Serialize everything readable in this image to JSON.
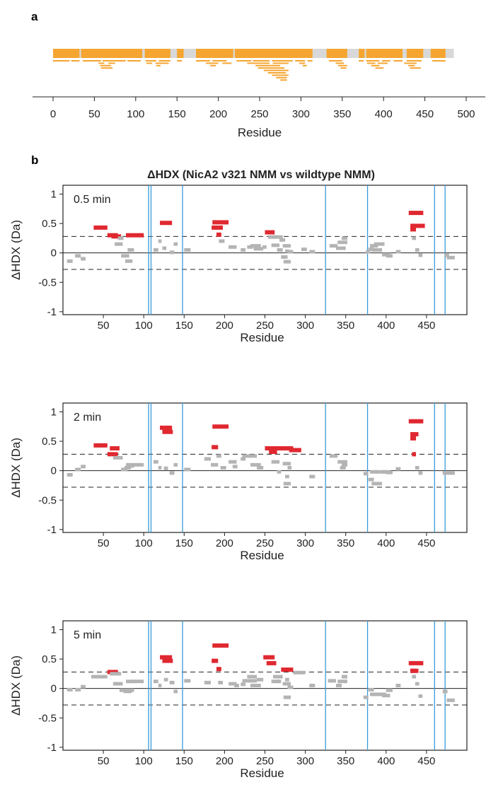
{
  "panel_a_label": "a",
  "panel_b_label": "b",
  "colors": {
    "coverage": "#F5A530",
    "gap": "#D8D8D8",
    "sig": "#E02830",
    "nonsig": "#B4B4B4",
    "marker": "#3A9AD9",
    "axis": "#222222"
  },
  "chart_data": [
    {
      "type": "bar",
      "title": "",
      "xlabel": "Residue",
      "xlim": [
        0,
        500
      ],
      "xticks": [
        0,
        50,
        100,
        150,
        200,
        250,
        300,
        350,
        400,
        450,
        500
      ],
      "sequence_length": 485,
      "covered_segments": [
        [
          0,
          32
        ],
        [
          34,
          108
        ],
        [
          111,
          142
        ],
        [
          150,
          158
        ],
        [
          173,
          218
        ],
        [
          220,
          314
        ],
        [
          331,
          356
        ],
        [
          370,
          377
        ],
        [
          379,
          423
        ],
        [
          428,
          448
        ],
        [
          457,
          475
        ]
      ],
      "peptides": [
        [
          0,
          32
        ],
        [
          34,
          108
        ],
        [
          111,
          142
        ],
        [
          150,
          158
        ],
        [
          173,
          218
        ],
        [
          220,
          314
        ],
        [
          331,
          356
        ],
        [
          370,
          377
        ],
        [
          379,
          423
        ],
        [
          428,
          448
        ],
        [
          457,
          475
        ],
        [
          0,
          20
        ],
        [
          22,
          32
        ],
        [
          36,
          58
        ],
        [
          60,
          88
        ],
        [
          90,
          106
        ],
        [
          112,
          125
        ],
        [
          128,
          142
        ],
        [
          150,
          156
        ],
        [
          173,
          190
        ],
        [
          193,
          210
        ],
        [
          222,
          240
        ],
        [
          242,
          262
        ],
        [
          265,
          290
        ],
        [
          293,
          305
        ],
        [
          308,
          314
        ],
        [
          334,
          350
        ],
        [
          370,
          376
        ],
        [
          379,
          395
        ],
        [
          398,
          408
        ],
        [
          412,
          423
        ],
        [
          428,
          446
        ],
        [
          459,
          475
        ],
        [
          55,
          62
        ],
        [
          67,
          75
        ],
        [
          113,
          120
        ],
        [
          124,
          140
        ],
        [
          185,
          200
        ],
        [
          205,
          216
        ],
        [
          235,
          262
        ],
        [
          266,
          285
        ],
        [
          298,
          305
        ],
        [
          342,
          352
        ],
        [
          380,
          390
        ],
        [
          393,
          405
        ],
        [
          425,
          440
        ],
        [
          57,
          70
        ],
        [
          125,
          130
        ],
        [
          190,
          197
        ],
        [
          245,
          275
        ],
        [
          302,
          307
        ],
        [
          345,
          356
        ],
        [
          385,
          395
        ],
        [
          430,
          438
        ],
        [
          58,
          72
        ],
        [
          248,
          280
        ],
        [
          348,
          355
        ],
        [
          390,
          400
        ],
        [
          432,
          445
        ],
        [
          255,
          285
        ],
        [
          260,
          282
        ],
        [
          265,
          285
        ],
        [
          270,
          283
        ],
        [
          275,
          283
        ]
      ]
    },
    {
      "type": "scatter",
      "title": "ΔHDX (NicA2 v321 NMM vs wildtype NMM)",
      "timepoint": "0.5 min",
      "xlabel": "Residue",
      "ylabel": "ΔHDX (Da)",
      "xlim": [
        0,
        500
      ],
      "ylim": [
        -1.05,
        1.15
      ],
      "xticks": [
        50,
        100,
        150,
        200,
        250,
        300,
        350,
        400,
        450
      ],
      "yticks": [
        1,
        0.5,
        0,
        -0.5,
        -1
      ],
      "yticklabels": [
        "1",
        "0.5",
        "0",
        "-0.5",
        "-1"
      ],
      "threshold": 0.28,
      "marker_positions": [
        106,
        109,
        148,
        325,
        377,
        460,
        473
      ],
      "peptides": [
        [
          5,
          12,
          -0.14
        ],
        [
          15,
          22,
          -0.05
        ],
        [
          22,
          28,
          -0.1
        ],
        [
          38,
          55,
          0.43
        ],
        [
          55,
          68,
          0.3
        ],
        [
          60,
          72,
          0.28
        ],
        [
          64,
          74,
          0.15
        ],
        [
          68,
          75,
          0.25
        ],
        [
          72,
          82,
          -0.05
        ],
        [
          77,
          86,
          -0.14
        ],
        [
          78,
          100,
          0.3
        ],
        [
          80,
          88,
          0.05
        ],
        [
          112,
          118,
          0.05
        ],
        [
          118,
          122,
          0.2
        ],
        [
          120,
          135,
          0.51
        ],
        [
          123,
          128,
          0.08
        ],
        [
          132,
          138,
          0.01
        ],
        [
          137,
          142,
          0.15
        ],
        [
          150,
          158,
          0.05
        ],
        [
          184,
          198,
          0.43
        ],
        [
          185,
          205,
          0.52
        ],
        [
          190,
          196,
          0.31
        ],
        [
          193,
          200,
          0.2
        ],
        [
          205,
          215,
          0.1
        ],
        [
          220,
          226,
          0.05
        ],
        [
          228,
          235,
          0.1
        ],
        [
          232,
          245,
          0.12
        ],
        [
          236,
          248,
          0.07
        ],
        [
          247,
          252,
          0.1
        ],
        [
          250,
          262,
          0.35
        ],
        [
          254,
          264,
          0.27
        ],
        [
          258,
          268,
          0.13
        ],
        [
          260,
          272,
          0.27
        ],
        [
          265,
          272,
          0.05
        ],
        [
          268,
          275,
          0.22
        ],
        [
          270,
          278,
          -0.07
        ],
        [
          272,
          282,
          0.12
        ],
        [
          273,
          282,
          -0.15
        ],
        [
          275,
          280,
          0.03
        ],
        [
          278,
          285,
          0.02
        ],
        [
          295,
          302,
          0.06
        ],
        [
          305,
          312,
          0.02
        ],
        [
          330,
          340,
          0.12
        ],
        [
          338,
          345,
          0.08
        ],
        [
          340,
          352,
          0.18
        ],
        [
          343,
          350,
          0.08
        ],
        [
          345,
          352,
          0.25
        ],
        [
          375,
          380,
          0.02
        ],
        [
          378,
          385,
          0.06
        ],
        [
          380,
          390,
          0.12
        ],
        [
          382,
          395,
          0.05
        ],
        [
          385,
          398,
          0.15
        ],
        [
          395,
          405,
          -0.03
        ],
        [
          400,
          408,
          -0.05
        ],
        [
          412,
          418,
          0.02
        ],
        [
          428,
          446,
          0.68
        ],
        [
          430,
          448,
          0.46
        ],
        [
          430,
          437,
          0.4
        ],
        [
          432,
          437,
          0.25
        ],
        [
          436,
          441,
          0.05
        ],
        [
          440,
          445,
          -0.04
        ],
        [
          472,
          478,
          -0.04
        ],
        [
          475,
          485,
          -0.08
        ]
      ]
    },
    {
      "type": "scatter",
      "timepoint": "2 min",
      "xlabel": "Residue",
      "ylabel": "ΔHDX (Da)",
      "xlim": [
        0,
        500
      ],
      "ylim": [
        -1.05,
        1.15
      ],
      "xticks": [
        50,
        100,
        150,
        200,
        250,
        300,
        350,
        400,
        450
      ],
      "yticks": [
        1,
        0.5,
        0,
        -0.5,
        -1
      ],
      "yticklabels": [
        "1",
        "0.5",
        "0",
        "-0.5",
        "-1"
      ],
      "threshold": 0.28,
      "marker_positions": [
        106,
        109,
        148,
        325,
        377,
        460,
        473
      ],
      "peptides": [
        [
          5,
          12,
          -0.07
        ],
        [
          15,
          22,
          0.02
        ],
        [
          22,
          28,
          0.07
        ],
        [
          38,
          55,
          0.43
        ],
        [
          55,
          68,
          0.28
        ],
        [
          58,
          70,
          0.38
        ],
        [
          62,
          74,
          0.22
        ],
        [
          72,
          80,
          0.02
        ],
        [
          76,
          84,
          0.05
        ],
        [
          78,
          100,
          0.1
        ],
        [
          80,
          88,
          0.08
        ],
        [
          112,
          118,
          0.15
        ],
        [
          118,
          122,
          0.05
        ],
        [
          120,
          135,
          0.73
        ],
        [
          123,
          136,
          0.66
        ],
        [
          125,
          130,
          0.04
        ],
        [
          132,
          138,
          -0.04
        ],
        [
          137,
          142,
          0.1
        ],
        [
          150,
          158,
          0.02
        ],
        [
          175,
          183,
          0.2
        ],
        [
          183,
          192,
          0.1
        ],
        [
          184,
          192,
          0.4
        ],
        [
          185,
          205,
          0.75
        ],
        [
          190,
          196,
          0.25
        ],
        [
          195,
          202,
          0.05
        ],
        [
          205,
          215,
          0.15
        ],
        [
          210,
          216,
          0.07
        ],
        [
          220,
          226,
          0.2
        ],
        [
          222,
          240,
          0.25
        ],
        [
          232,
          245,
          0.1
        ],
        [
          240,
          248,
          0.05
        ],
        [
          250,
          262,
          0.38
        ],
        [
          255,
          265,
          0.32
        ],
        [
          258,
          268,
          0.15
        ],
        [
          260,
          272,
          0.38
        ],
        [
          265,
          270,
          -0.02
        ],
        [
          270,
          285,
          0.38
        ],
        [
          272,
          282,
          0.12
        ],
        [
          273,
          282,
          -0.22
        ],
        [
          275,
          280,
          -0.1
        ],
        [
          278,
          283,
          0.05
        ],
        [
          280,
          295,
          0.35
        ],
        [
          305,
          312,
          -0.1
        ],
        [
          330,
          340,
          0.25
        ],
        [
          340,
          352,
          0.15
        ],
        [
          343,
          350,
          0.05
        ],
        [
          345,
          352,
          0.1
        ],
        [
          372,
          378,
          -0.05
        ],
        [
          378,
          385,
          -0.15
        ],
        [
          380,
          390,
          -0.02
        ],
        [
          382,
          395,
          -0.22
        ],
        [
          385,
          400,
          -0.02
        ],
        [
          395,
          405,
          -0.02
        ],
        [
          400,
          408,
          -0.03
        ],
        [
          412,
          418,
          0.03
        ],
        [
          428,
          446,
          0.84
        ],
        [
          430,
          440,
          0.62
        ],
        [
          430,
          437,
          0.55
        ],
        [
          432,
          437,
          0.28
        ],
        [
          436,
          441,
          0.05
        ],
        [
          440,
          445,
          -0.04
        ],
        [
          470,
          480,
          -0.04
        ],
        [
          475,
          485,
          -0.04
        ]
      ]
    },
    {
      "type": "scatter",
      "timepoint": "5 min",
      "xlabel": "Residue",
      "ylabel": "ΔHDX (Da)",
      "xlim": [
        0,
        500
      ],
      "ylim": [
        -1.05,
        1.15
      ],
      "xticks": [
        50,
        100,
        150,
        200,
        250,
        300,
        350,
        400,
        450
      ],
      "yticks": [
        1,
        0.5,
        0,
        -0.5,
        -1
      ],
      "yticklabels": [
        "1",
        "0.5",
        "0",
        "-0.5",
        "-1"
      ],
      "threshold": 0.28,
      "marker_positions": [
        106,
        109,
        148,
        325,
        377,
        460,
        473
      ],
      "peptides": [
        [
          5,
          12,
          -0.02
        ],
        [
          15,
          22,
          -0.02
        ],
        [
          22,
          28,
          0.03
        ],
        [
          35,
          55,
          0.2
        ],
        [
          55,
          68,
          0.28
        ],
        [
          58,
          72,
          0.25
        ],
        [
          62,
          74,
          0.08
        ],
        [
          70,
          80,
          -0.03
        ],
        [
          75,
          85,
          -0.05
        ],
        [
          78,
          100,
          0.12
        ],
        [
          80,
          88,
          -0.03
        ],
        [
          112,
          118,
          0.12
        ],
        [
          118,
          122,
          0.05
        ],
        [
          120,
          135,
          0.53
        ],
        [
          123,
          136,
          0.47
        ],
        [
          125,
          130,
          0.15
        ],
        [
          132,
          138,
          0.1
        ],
        [
          137,
          142,
          -0.05
        ],
        [
          150,
          158,
          0.13
        ],
        [
          175,
          183,
          0.1
        ],
        [
          184,
          192,
          0.47
        ],
        [
          185,
          205,
          0.73
        ],
        [
          190,
          196,
          0.33
        ],
        [
          192,
          198,
          0.1
        ],
        [
          205,
          215,
          0.08
        ],
        [
          212,
          218,
          0.05
        ],
        [
          220,
          226,
          0.07
        ],
        [
          222,
          240,
          0.13
        ],
        [
          228,
          240,
          0.2
        ],
        [
          232,
          245,
          0.05
        ],
        [
          240,
          248,
          0.15
        ],
        [
          248,
          262,
          0.53
        ],
        [
          252,
          264,
          0.43
        ],
        [
          258,
          268,
          0.12
        ],
        [
          260,
          272,
          0.2
        ],
        [
          265,
          270,
          0.12
        ],
        [
          270,
          285,
          0.32
        ],
        [
          272,
          282,
          0.08
        ],
        [
          273,
          282,
          -0.15
        ],
        [
          275,
          280,
          0.15
        ],
        [
          278,
          285,
          0.02
        ],
        [
          285,
          300,
          0.27
        ],
        [
          305,
          312,
          0.05
        ],
        [
          328,
          338,
          0.13
        ],
        [
          338,
          345,
          0.05
        ],
        [
          340,
          352,
          0.12
        ],
        [
          345,
          352,
          0.2
        ],
        [
          372,
          378,
          -0.15
        ],
        [
          378,
          385,
          -0.02
        ],
        [
          380,
          390,
          -0.1
        ],
        [
          382,
          395,
          -0.1
        ],
        [
          385,
          400,
          -0.1
        ],
        [
          395,
          405,
          -0.12
        ],
        [
          400,
          408,
          -0.03
        ],
        [
          412,
          418,
          0.05
        ],
        [
          428,
          446,
          0.43
        ],
        [
          430,
          440,
          0.3
        ],
        [
          430,
          437,
          0.3
        ],
        [
          432,
          437,
          0.2
        ],
        [
          436,
          441,
          0.08
        ],
        [
          440,
          445,
          -0.13
        ],
        [
          470,
          476,
          -0.05
        ],
        [
          475,
          485,
          -0.2
        ]
      ]
    }
  ]
}
